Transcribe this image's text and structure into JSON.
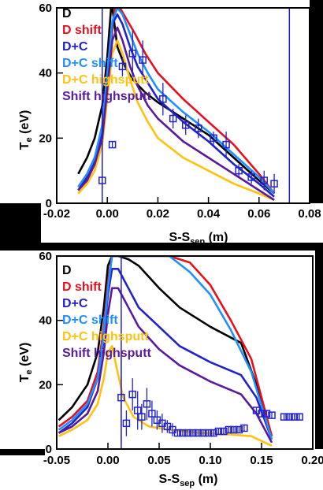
{
  "chart_data": [
    {
      "type": "line",
      "xlabel": "S-S",
      "xlabel_sub": "sep",
      "xlabel_unit": " (m)",
      "ylabel": "T",
      "ylabel_sub": "e",
      "ylabel_unit": " (eV)",
      "xlim": [
        -0.02,
        0.08
      ],
      "ylim": [
        0,
        60
      ],
      "xticks": [
        "-0.02",
        "0.00",
        "0.02",
        "0.04",
        "0.06",
        "0.08"
      ],
      "yticks": [
        "0",
        "20",
        "40",
        "60"
      ],
      "legend": [
        "D",
        "D shift",
        "D+C",
        "D+C shift",
        "D+C highsputt",
        "Shift highsputt"
      ],
      "series": [
        {
          "name": "D",
          "color": "#000000",
          "x": [
            -0.0115,
            -0.008,
            -0.005,
            -0.002,
            0.0,
            0.0015,
            0.002,
            0.004,
            0.007,
            0.01,
            0.015,
            0.02,
            0.03,
            0.04,
            0.05,
            0.06,
            0.066
          ],
          "y": [
            9,
            14,
            20,
            30,
            45,
            60,
            60,
            48,
            42,
            38,
            34,
            31,
            26,
            21,
            14,
            7,
            3
          ]
        },
        {
          "name": "D shift",
          "color": "#e8101c",
          "x": [
            -0.0115,
            -0.008,
            -0.005,
            -0.002,
            0.0,
            0.0015,
            0.003,
            0.005,
            0.008,
            0.011,
            0.015,
            0.02,
            0.03,
            0.04,
            0.05,
            0.06,
            0.066
          ],
          "y": [
            5,
            9,
            14,
            22,
            35,
            50,
            60,
            60,
            56,
            52,
            46,
            40,
            32,
            25,
            18,
            9,
            3
          ]
        },
        {
          "name": "D+C",
          "color": "#2222cc",
          "x": [
            -0.0115,
            -0.008,
            -0.005,
            -0.002,
            0.0,
            0.002,
            0.004,
            0.006,
            0.009,
            0.012,
            0.016,
            0.02,
            0.03,
            0.04,
            0.05,
            0.06,
            0.066
          ],
          "y": [
            4,
            8,
            13,
            22,
            38,
            55,
            58,
            55,
            48,
            42,
            37,
            32,
            25,
            19,
            12,
            6,
            2
          ]
        },
        {
          "name": "D+C shift",
          "color": "#1e90ff",
          "x": [
            -0.0115,
            -0.008,
            -0.005,
            -0.002,
            0.0,
            0.002,
            0.004,
            0.006,
            0.009,
            0.012,
            0.016,
            0.02,
            0.03,
            0.04,
            0.05,
            0.06,
            0.066
          ],
          "y": [
            5,
            9,
            14,
            24,
            40,
            56,
            60,
            58,
            52,
            46,
            40,
            35,
            28,
            22,
            15,
            8,
            3
          ]
        },
        {
          "name": "D+C highsputt",
          "color": "#ffc20e",
          "x": [
            -0.0115,
            -0.008,
            -0.005,
            -0.002,
            0.0,
            0.002,
            0.004,
            0.006,
            0.009,
            0.012,
            0.016,
            0.02,
            0.03,
            0.04,
            0.05,
            0.06,
            0.066
          ],
          "y": [
            3,
            6,
            10,
            18,
            32,
            46,
            50,
            46,
            38,
            31,
            25,
            20,
            14,
            10,
            6,
            3,
            1
          ]
        },
        {
          "name": "Shift highsputt",
          "color": "#5a1a9e",
          "x": [
            -0.0115,
            -0.008,
            -0.005,
            -0.002,
            0.0,
            0.002,
            0.004,
            0.006,
            0.009,
            0.012,
            0.016,
            0.02,
            0.03,
            0.04,
            0.05,
            0.06,
            0.066
          ],
          "y": [
            4,
            7,
            12,
            20,
            35,
            50,
            54,
            50,
            42,
            36,
            30,
            26,
            19,
            14,
            9,
            4,
            1
          ]
        }
      ],
      "measurements": {
        "name": "data",
        "color": "#2222cc",
        "points": [
          {
            "x": -0.002,
            "y": 7,
            "err": 7
          },
          {
            "x": 0.002,
            "y": 18,
            "err": 1
          },
          {
            "x": 0.006,
            "y": 42,
            "err": 3
          },
          {
            "x": 0.01,
            "y": 46,
            "err": 7
          },
          {
            "x": 0.014,
            "y": 44,
            "err": 6
          },
          {
            "x": 0.022,
            "y": 32,
            "err": 5
          },
          {
            "x": 0.026,
            "y": 26,
            "err": 3
          },
          {
            "x": 0.031,
            "y": 24,
            "err": 3
          },
          {
            "x": 0.036,
            "y": 23,
            "err": 3
          },
          {
            "x": 0.042,
            "y": 20,
            "err": 2
          },
          {
            "x": 0.047,
            "y": 18,
            "err": 4
          },
          {
            "x": 0.052,
            "y": 10,
            "err": 2
          },
          {
            "x": 0.057,
            "y": 8,
            "err": 2
          },
          {
            "x": 0.062,
            "y": 7,
            "err": 3
          },
          {
            "x": 0.066,
            "y": 6,
            "err": 3
          }
        ]
      },
      "vlines": [
        {
          "x": -0.002,
          "color": "#2222cc"
        },
        {
          "x": 0.072,
          "color": "#2222cc"
        }
      ]
    },
    {
      "type": "line",
      "xlabel": "S-S",
      "xlabel_sub": "sep",
      "xlabel_unit": " (m)",
      "ylabel": "T",
      "ylabel_sub": "e",
      "ylabel_unit": " (eV)",
      "xlim": [
        -0.05,
        0.2
      ],
      "ylim": [
        0,
        60
      ],
      "xticks": [
        "-0.05",
        "0.00",
        "0.05",
        "0.10",
        "0.15",
        "0.20"
      ],
      "yticks": [
        "0",
        "20",
        "40",
        "60"
      ],
      "legend": [
        "D",
        "D shift",
        "D+C",
        "D+C shift",
        "D+C highsputt",
        "Shift highsputt"
      ],
      "series": [
        {
          "name": "D",
          "color": "#000000",
          "x": [
            -0.048,
            -0.035,
            -0.02,
            -0.01,
            -0.004,
            0.0,
            0.004,
            0.01,
            0.02,
            0.03,
            0.05,
            0.07,
            0.1,
            0.13,
            0.145,
            0.16
          ],
          "y": [
            9,
            13,
            20,
            30,
            44,
            57,
            60,
            60,
            59,
            57,
            50,
            44,
            38,
            33,
            20,
            4
          ]
        },
        {
          "name": "D shift",
          "color": "#e8101c",
          "x": [
            -0.048,
            -0.035,
            -0.02,
            -0.01,
            -0.004,
            0.0,
            0.004,
            0.01,
            0.03,
            0.06,
            0.08,
            0.1,
            0.12,
            0.14,
            0.16
          ],
          "y": [
            7,
            10,
            15,
            24,
            38,
            52,
            60,
            60,
            60,
            60,
            58,
            51,
            40,
            28,
            4
          ]
        },
        {
          "name": "D+C",
          "color": "#2222cc",
          "x": [
            -0.048,
            -0.035,
            -0.02,
            -0.01,
            -0.004,
            0.0,
            0.004,
            0.01,
            0.02,
            0.03,
            0.05,
            0.07,
            0.1,
            0.13,
            0.145,
            0.16
          ],
          "y": [
            5,
            8,
            13,
            22,
            35,
            48,
            56,
            56,
            50,
            44,
            38,
            32,
            27,
            23,
            16,
            3
          ]
        },
        {
          "name": "D+C shift",
          "color": "#1e90ff",
          "x": [
            -0.048,
            -0.035,
            -0.02,
            -0.01,
            -0.004,
            0.0,
            0.004,
            0.01,
            0.03,
            0.06,
            0.08,
            0.1,
            0.12,
            0.14,
            0.16
          ],
          "y": [
            6,
            9,
            14,
            22,
            36,
            50,
            60,
            60,
            60,
            60,
            55,
            48,
            37,
            24,
            3
          ]
        },
        {
          "name": "D+C highsputt",
          "color": "#ffc20e",
          "x": [
            -0.048,
            -0.035,
            -0.02,
            -0.01,
            -0.004,
            0.0,
            0.004,
            0.008,
            0.015,
            0.025,
            0.04,
            0.06,
            0.09,
            0.12,
            0.14,
            0.16
          ],
          "y": [
            4,
            6,
            9,
            14,
            22,
            30,
            32,
            26,
            16,
            10,
            7,
            6,
            5,
            4.5,
            4,
            1
          ]
        },
        {
          "name": "Shift highsputt",
          "color": "#5a1a9e",
          "x": [
            -0.048,
            -0.035,
            -0.02,
            -0.01,
            -0.004,
            0.0,
            0.004,
            0.01,
            0.02,
            0.03,
            0.05,
            0.07,
            0.1,
            0.13,
            0.145,
            0.16
          ],
          "y": [
            5,
            7,
            11,
            18,
            30,
            42,
            50,
            50,
            44,
            38,
            31,
            26,
            21,
            17,
            11,
            2
          ]
        }
      ],
      "measurements": {
        "name": "data",
        "color": "#2222cc",
        "points": [
          {
            "x": 0.013,
            "y": 16,
            "err": 14
          },
          {
            "x": 0.018,
            "y": 8,
            "err": 4
          },
          {
            "x": 0.024,
            "y": 17,
            "err": 5
          },
          {
            "x": 0.029,
            "y": 12,
            "err": 6
          },
          {
            "x": 0.033,
            "y": 10,
            "err": 4
          },
          {
            "x": 0.038,
            "y": 14,
            "err": 5
          },
          {
            "x": 0.043,
            "y": 11,
            "err": 4
          },
          {
            "x": 0.048,
            "y": 9,
            "err": 3
          },
          {
            "x": 0.053,
            "y": 8,
            "err": 3
          },
          {
            "x": 0.058,
            "y": 7,
            "err": 2
          },
          {
            "x": 0.063,
            "y": 6,
            "err": 2
          },
          {
            "x": 0.068,
            "y": 5,
            "err": 1
          },
          {
            "x": 0.073,
            "y": 5,
            "err": 1
          },
          {
            "x": 0.078,
            "y": 5,
            "err": 1
          },
          {
            "x": 0.083,
            "y": 5,
            "err": 1
          },
          {
            "x": 0.088,
            "y": 5,
            "err": 1
          },
          {
            "x": 0.093,
            "y": 5,
            "err": 1
          },
          {
            "x": 0.098,
            "y": 5,
            "err": 1
          },
          {
            "x": 0.103,
            "y": 5,
            "err": 1
          },
          {
            "x": 0.108,
            "y": 5.5,
            "err": 1
          },
          {
            "x": 0.113,
            "y": 5.5,
            "err": 1
          },
          {
            "x": 0.118,
            "y": 6,
            "err": 1
          },
          {
            "x": 0.123,
            "y": 6,
            "err": 1
          },
          {
            "x": 0.128,
            "y": 6,
            "err": 1
          },
          {
            "x": 0.133,
            "y": 6.5,
            "err": 1
          },
          {
            "x": 0.145,
            "y": 12,
            "err": 1
          },
          {
            "x": 0.15,
            "y": 11,
            "err": 1
          },
          {
            "x": 0.155,
            "y": 11,
            "err": 1
          },
          {
            "x": 0.16,
            "y": 10.5,
            "err": 1
          },
          {
            "x": 0.172,
            "y": 10,
            "err": 1
          },
          {
            "x": 0.177,
            "y": 10,
            "err": 1
          },
          {
            "x": 0.182,
            "y": 10,
            "err": 1
          },
          {
            "x": 0.187,
            "y": 10,
            "err": 1
          }
        ]
      },
      "vlines": [
        {
          "x": 0.013,
          "color": "#2222cc"
        }
      ]
    }
  ]
}
